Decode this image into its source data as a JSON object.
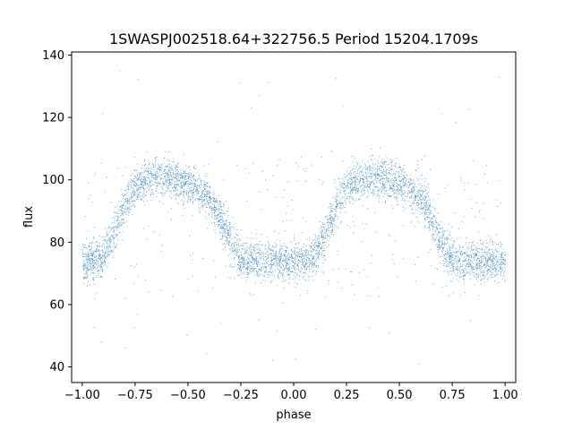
{
  "chart_data": {
    "type": "scatter",
    "title": "1SWASPJ002518.64+322756.5 Period 15204.1709s",
    "xlabel": "phase",
    "ylabel": "flux",
    "xlim": [
      -1.05,
      1.05
    ],
    "ylim": [
      35,
      141
    ],
    "xticks": [
      -1.0,
      -0.75,
      -0.5,
      -0.25,
      0.0,
      0.25,
      0.5,
      0.75,
      1.0
    ],
    "xtick_labels": [
      "−1.00",
      "−0.75",
      "−0.50",
      "−0.25",
      "0.00",
      "0.25",
      "0.50",
      "0.75",
      "1.00"
    ],
    "yticks": [
      40,
      60,
      80,
      100,
      120,
      140
    ],
    "ytick_labels": [
      "40",
      "60",
      "80",
      "100",
      "120",
      "140"
    ],
    "grid": false,
    "marker_color": "#1f77b4",
    "series": [
      {
        "phase_profile_x": [
          0.0,
          0.05,
          0.1,
          0.15,
          0.2,
          0.25,
          0.3,
          0.35,
          0.4,
          0.45,
          0.5,
          0.55,
          0.6,
          0.65,
          0.7,
          0.75,
          0.8,
          0.85,
          0.9,
          0.95,
          1.0
        ],
        "phase_profile_flux": [
          74,
          74,
          76,
          83,
          92,
          98,
          100,
          101,
          101,
          100,
          99,
          97,
          94,
          88,
          80,
          75,
          74,
          74,
          74,
          74,
          74
        ]
      }
    ]
  }
}
